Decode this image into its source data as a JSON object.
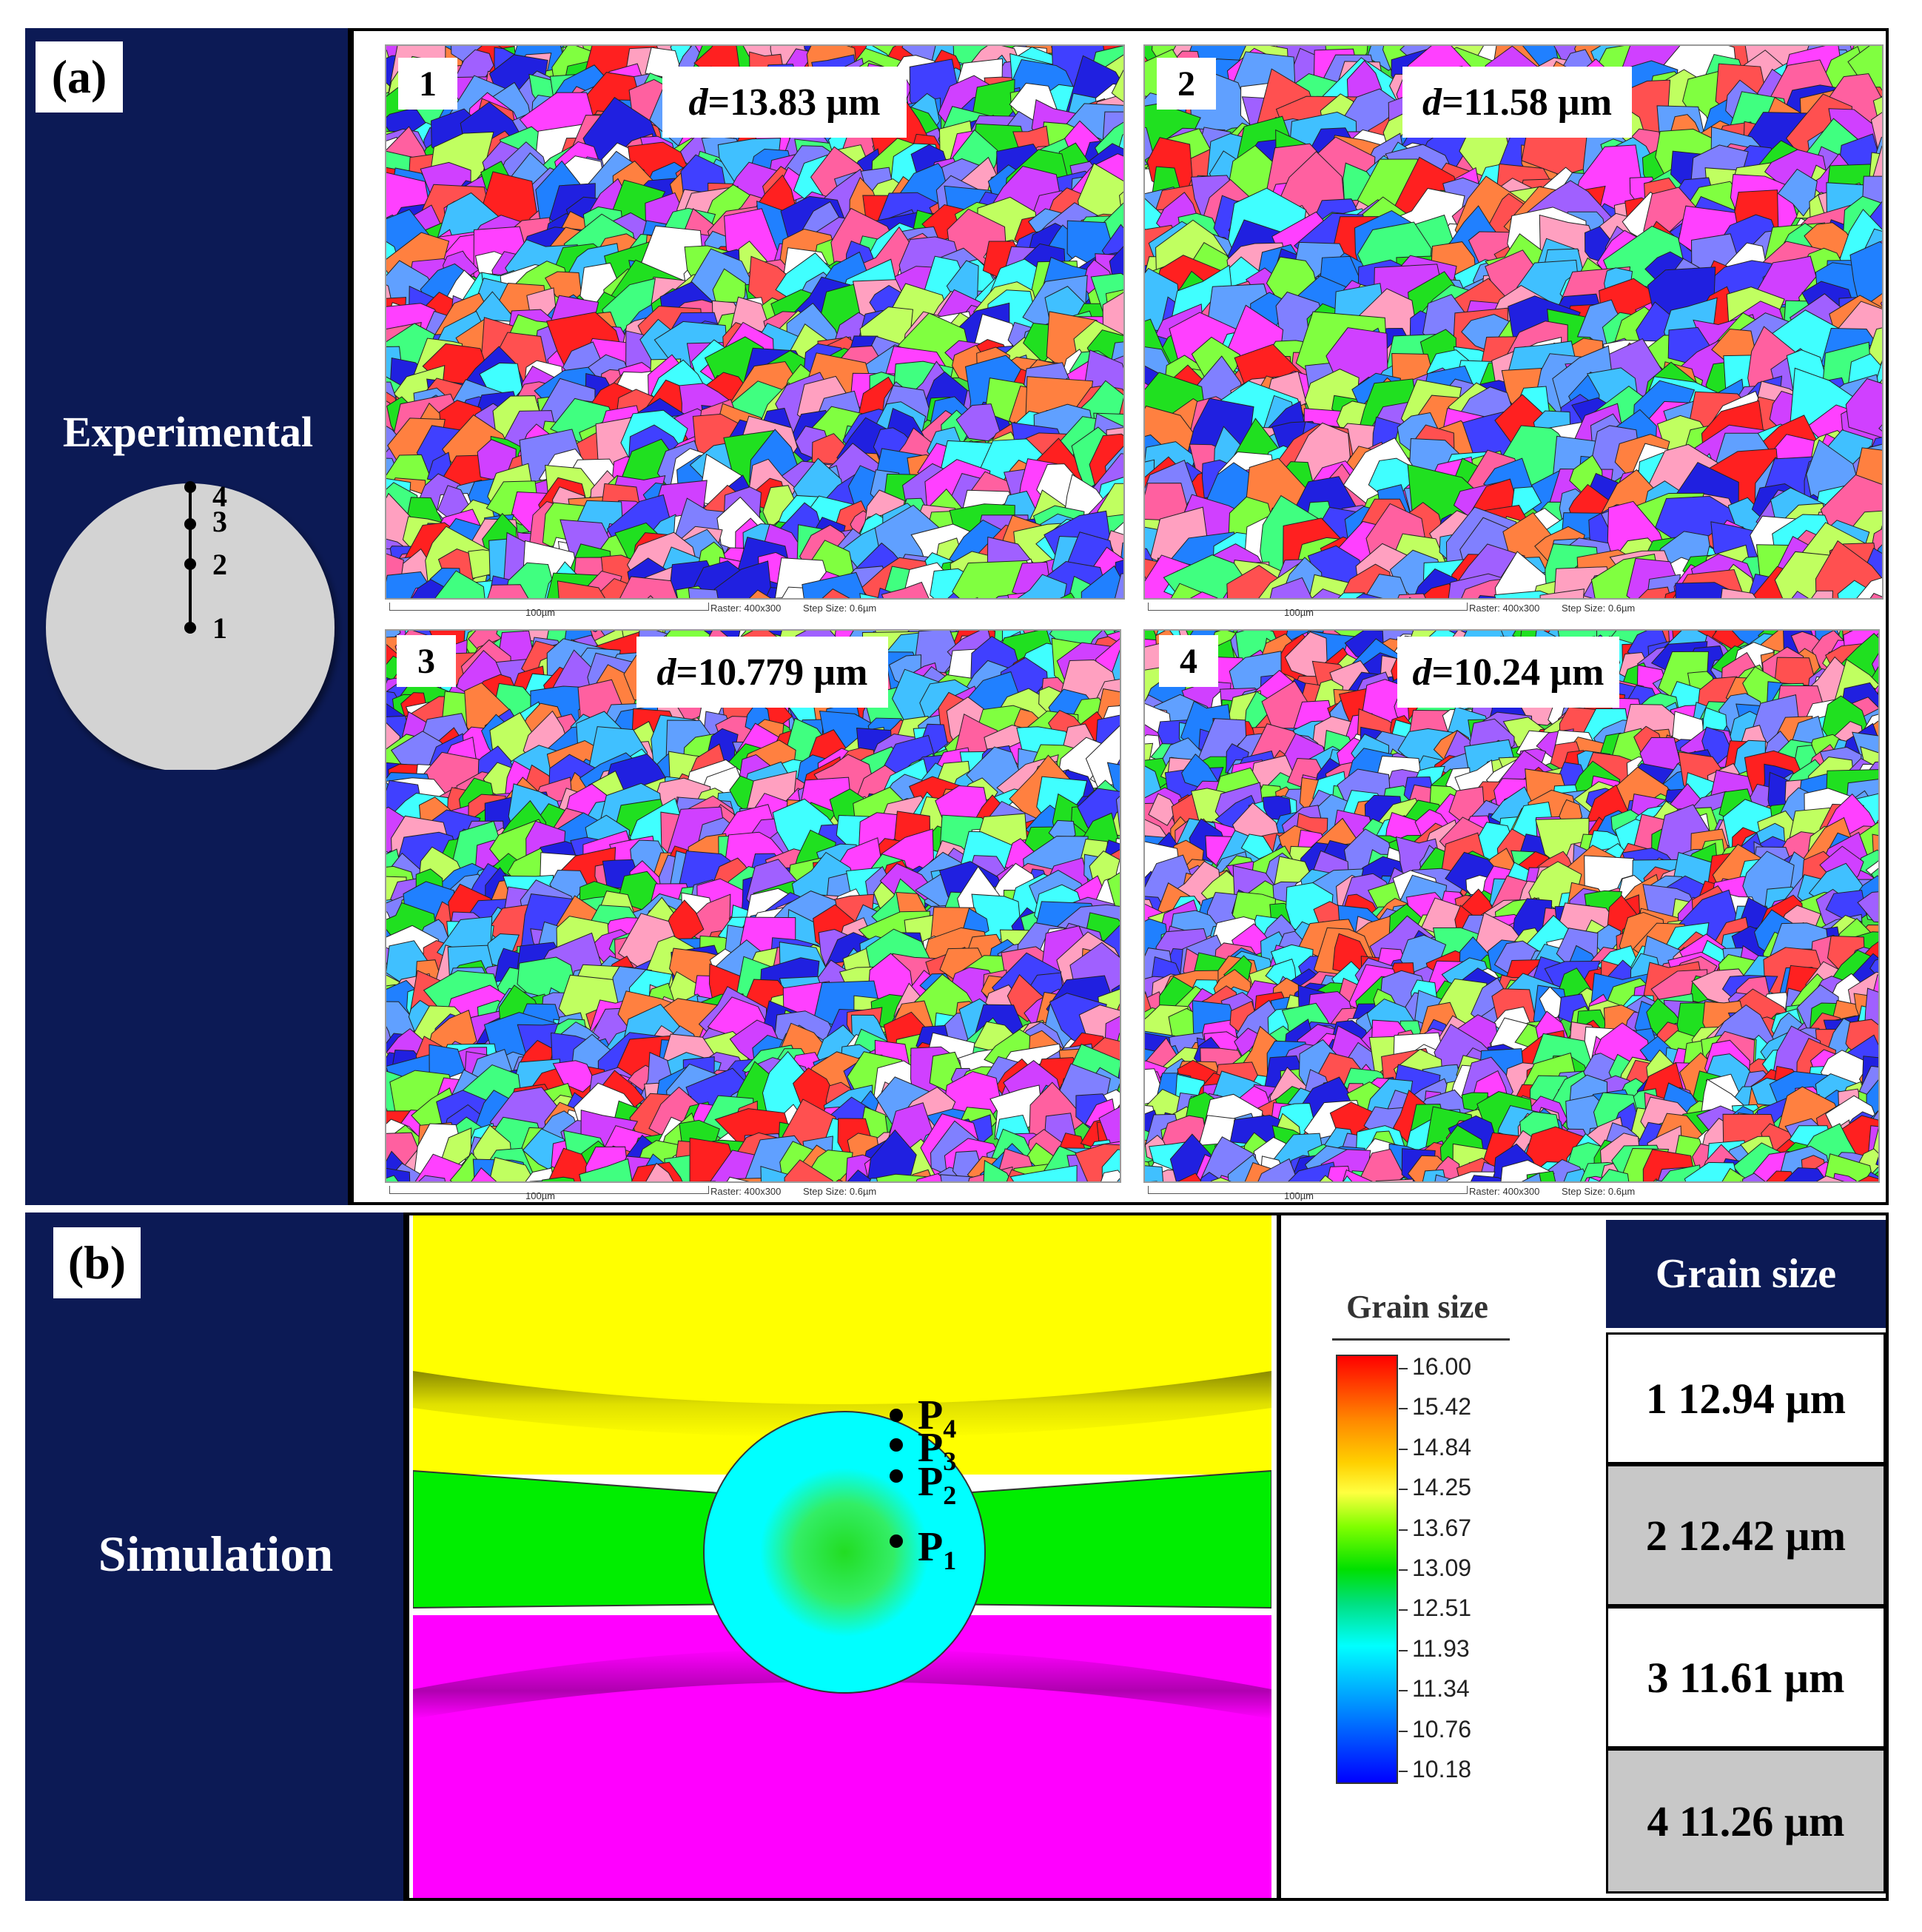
{
  "panel_a": {
    "label": "(a)",
    "side_title": "Experimental",
    "schematic_points": [
      "1",
      "2",
      "3",
      "4"
    ],
    "maps": [
      {
        "number": "1",
        "d_var": "d",
        "d_value": "=13.83 µm",
        "scale_label": "100µm",
        "raster": "Raster: 400x300",
        "step": "Step Size: 0.6µm"
      },
      {
        "number": "2",
        "d_var": "d",
        "d_value": "=11.58 µm",
        "scale_label": "100µm",
        "raster": "Raster: 400x300",
        "step": "Step Size: 0.6µm"
      },
      {
        "number": "3",
        "d_var": "d",
        "d_value": "=10.779 µm",
        "scale_label": "100µm",
        "raster": "Raster: 400x300",
        "step": "Step Size: 0.6µm"
      },
      {
        "number": "4",
        "d_var": "d",
        "d_value": "=10.24 µm",
        "scale_label": "100µm",
        "raster": "Raster: 400x300",
        "step": "Step Size: 0.6µm"
      }
    ]
  },
  "panel_b": {
    "label": "(b)",
    "side_title": "Simulation",
    "points": [
      {
        "letter": "P",
        "sub": "4"
      },
      {
        "letter": "P",
        "sub": "3"
      },
      {
        "letter": "P",
        "sub": "2"
      },
      {
        "letter": "P",
        "sub": "1"
      }
    ],
    "legend": {
      "title": "Grain size",
      "ticks": [
        "16.00",
        "15.42",
        "14.84",
        "14.25",
        "13.67",
        "13.09",
        "12.51",
        "11.93",
        "11.34",
        "10.76",
        "10.18"
      ]
    },
    "table": {
      "header": "Grain size",
      "rows": [
        {
          "text": "1  12.94 µm"
        },
        {
          "text": "2  12.42 µm"
        },
        {
          "text": "3  11.61 µm"
        },
        {
          "text": "4  11.26 µm"
        }
      ]
    }
  },
  "colors": {
    "navy": "#0c1a55",
    "yellow": "#ffff00",
    "green": "#00ee00",
    "magenta": "#ff00ff",
    "cyan": "#00ffff",
    "schematic_gray": "#d3d3d3"
  }
}
